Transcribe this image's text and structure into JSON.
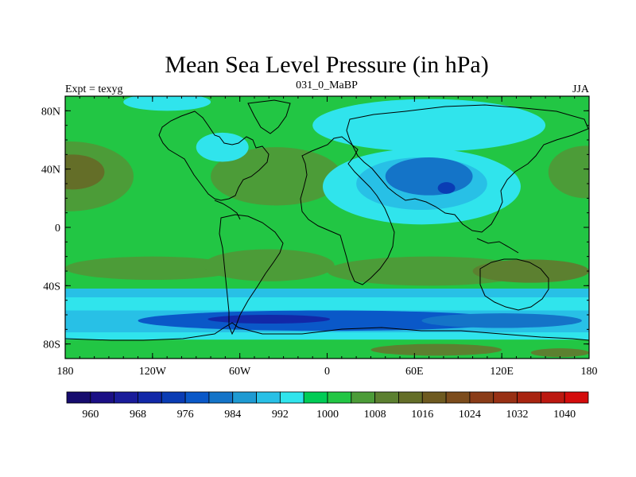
{
  "chart_data": {
    "type": "heatmap",
    "title": "Mean Sea Level Pressure (in hPa)",
    "left_string": "Expt = texyg",
    "center_string": "031_0_MaBP",
    "right_string": "JJA",
    "projection": "cylindrical-equidistant",
    "xlim": [
      -180,
      180
    ],
    "ylim": [
      -90,
      90
    ],
    "x_ticks": [
      {
        "value": -180,
        "label": "180"
      },
      {
        "value": -120,
        "label": "120W"
      },
      {
        "value": -60,
        "label": "60W"
      },
      {
        "value": 0,
        "label": "0"
      },
      {
        "value": 60,
        "label": "60E"
      },
      {
        "value": 120,
        "label": "120E"
      },
      {
        "value": 180,
        "label": "180"
      }
    ],
    "y_ticks": [
      {
        "value": 80,
        "label": "80N"
      },
      {
        "value": 40,
        "label": "40N"
      },
      {
        "value": 0,
        "label": "0"
      },
      {
        "value": -40,
        "label": "40S"
      },
      {
        "value": -80,
        "label": "80S"
      }
    ],
    "colorbar": {
      "levels": [
        956,
        960,
        964,
        968,
        972,
        976,
        980,
        984,
        988,
        992,
        996,
        1000,
        1004,
        1008,
        1012,
        1016,
        1020,
        1024,
        1028,
        1032,
        1036,
        1040,
        1044
      ],
      "labels": [
        {
          "value": 960,
          "label": "960"
        },
        {
          "value": 968,
          "label": "968"
        },
        {
          "value": 976,
          "label": "976"
        },
        {
          "value": 984,
          "label": "984"
        },
        {
          "value": 992,
          "label": "992"
        },
        {
          "value": 1000,
          "label": "1000"
        },
        {
          "value": 1008,
          "label": "1008"
        },
        {
          "value": 1016,
          "label": "1016"
        },
        {
          "value": 1024,
          "label": "1024"
        },
        {
          "value": 1032,
          "label": "1032"
        },
        {
          "value": 1040,
          "label": "1040"
        }
      ],
      "colors": [
        "#160c6e",
        "#1b0f85",
        "#1a1c9a",
        "#1228a8",
        "#0a3cb4",
        "#0a58c8",
        "#1474c8",
        "#1e9ad2",
        "#28c0e6",
        "#30e4ec",
        "#00cc55",
        "#22c644",
        "#4c9c38",
        "#5c8030",
        "#646e28",
        "#6e5a20",
        "#7c4c1c",
        "#8a3c18",
        "#983014",
        "#a82410",
        "#bc1810",
        "#d40c0c"
      ]
    },
    "features": [
      {
        "type": "high",
        "name": "North Pacific high",
        "lon": -175,
        "lat": 38,
        "value": 1022
      },
      {
        "type": "high",
        "name": "North Atlantic high",
        "lon": -35,
        "lat": 35,
        "value": 1018
      },
      {
        "type": "low",
        "name": "Asian monsoon low",
        "lon": 75,
        "lat": 30,
        "value": 988
      },
      {
        "type": "high",
        "name": "Southern subtropical high belt",
        "lat": -30,
        "value": 1018
      },
      {
        "type": "low",
        "name": "Southern Ocean trough",
        "lat": -62,
        "value": 984
      }
    ]
  }
}
